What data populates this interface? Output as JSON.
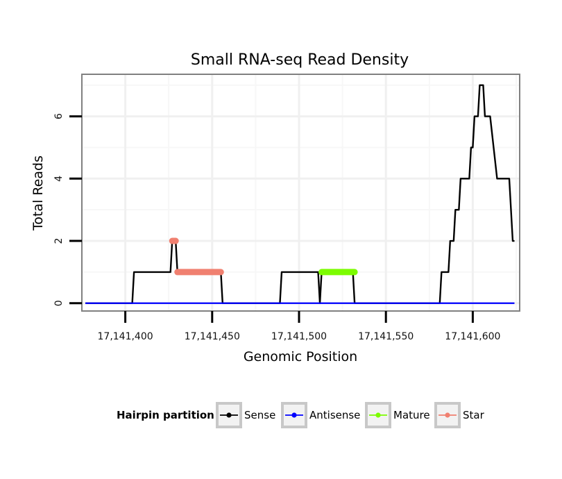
{
  "chart_data": {
    "type": "line",
    "title": "Small RNA-seq Read Density",
    "xlabel": "Genomic Position",
    "ylabel": "Total Reads",
    "xlim": [
      17141375,
      17141627
    ],
    "ylim": [
      -0.25,
      7.35
    ],
    "grid": true,
    "x_ticks": [
      {
        "value": 17141400,
        "label": "17,141,400"
      },
      {
        "value": 17141450,
        "label": "17,141,450"
      },
      {
        "value": 17141500,
        "label": "17,141,500"
      },
      {
        "value": 17141550,
        "label": "17,141,550"
      },
      {
        "value": 17141600,
        "label": "17,141,600"
      }
    ],
    "y_ticks": [
      {
        "value": 0,
        "label": "0"
      },
      {
        "value": 2,
        "label": "2"
      },
      {
        "value": 4,
        "label": "4"
      },
      {
        "value": 6,
        "label": "6"
      }
    ],
    "legend": {
      "title": "Hairpin partition",
      "position": "bottom"
    },
    "series": [
      {
        "name": "Sense",
        "color": "#000000",
        "x": [
          17141377,
          17141404,
          17141405,
          17141426,
          17141427,
          17141429,
          17141430,
          17141455,
          17141456,
          17141489,
          17141490,
          17141511,
          17141512,
          17141513,
          17141531,
          17141532,
          17141581,
          17141582,
          17141586,
          17141587,
          17141589,
          17141590,
          17141592,
          17141593,
          17141598,
          17141599,
          17141600,
          17141601,
          17141603,
          17141604,
          17141606,
          17141607,
          17141608,
          17141610,
          17141614,
          17141621,
          17141623,
          17141624
        ],
        "y": [
          0,
          0,
          1,
          1,
          2,
          2,
          1,
          1,
          0,
          0,
          1,
          1,
          0,
          1,
          1,
          0,
          0,
          1,
          1,
          2,
          2,
          3,
          3,
          4,
          4,
          5,
          5,
          6,
          6,
          7,
          7,
          6,
          6,
          6,
          4,
          4,
          2,
          2
        ]
      },
      {
        "name": "Antisense",
        "color": "#0000ff",
        "x": [
          17141377,
          17141624
        ],
        "y": [
          0,
          0
        ]
      },
      {
        "name": "Mature",
        "color": "#7cfc00",
        "x": [
          17141513,
          17141532
        ],
        "y": [
          1,
          1
        ]
      },
      {
        "name": "Star",
        "color": "#f08070",
        "segments": [
          {
            "x": [
              17141427,
              17141429
            ],
            "y": [
              2,
              2
            ]
          },
          {
            "x": [
              17141430,
              17141455
            ],
            "y": [
              1,
              1
            ]
          }
        ]
      }
    ]
  }
}
